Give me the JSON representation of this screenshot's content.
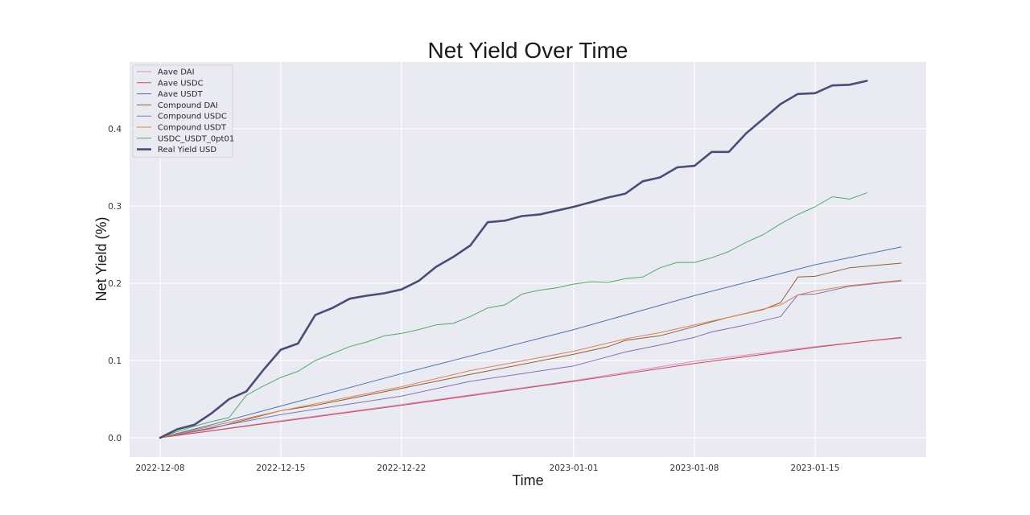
{
  "chart_data": {
    "type": "line",
    "title": "Net Yield Over Time",
    "xlabel": "Time",
    "ylabel": "Net Yield (%)",
    "x_type": "date",
    "xlim": [
      "2022-12-08",
      "2023-01-20"
    ],
    "ylim": [
      -0.02,
      0.48
    ],
    "x_ticks": [
      "2022-12-08",
      "2022-12-15",
      "2022-12-22",
      "2023-01-01",
      "2023-01-08",
      "2023-01-15"
    ],
    "y_ticks": [
      0.0,
      0.1,
      0.2,
      0.3,
      0.4
    ],
    "y_tick_labels": [
      "0.0",
      "0.1",
      "0.2",
      "0.3",
      "0.4"
    ],
    "grid": true,
    "legend_position": "top-left",
    "background": "#eaeaf2",
    "series": [
      {
        "name": "Aave DAI",
        "color": "#da8bc3",
        "linewidth": 1,
        "points": [
          [
            "2022-12-08",
            0
          ],
          [
            "2022-12-15",
            0.022
          ],
          [
            "2022-12-22",
            0.043
          ],
          [
            "2023-01-01",
            0.074
          ],
          [
            "2023-01-08",
            0.099
          ],
          [
            "2023-01-15",
            0.118
          ],
          [
            "2023-01-18",
            0.125
          ],
          [
            "2023-01-20",
            0.129
          ]
        ]
      },
      {
        "name": "Aave USDC",
        "color": "#c44e52",
        "linewidth": 1,
        "points": [
          [
            "2022-12-08",
            0
          ],
          [
            "2022-12-15",
            0.021
          ],
          [
            "2022-12-22",
            0.042
          ],
          [
            "2023-01-01",
            0.073
          ],
          [
            "2023-01-08",
            0.096
          ],
          [
            "2023-01-15",
            0.117
          ],
          [
            "2023-01-18",
            0.125
          ],
          [
            "2023-01-20",
            0.13
          ]
        ]
      },
      {
        "name": "Aave USDT",
        "color": "#4c72b0",
        "linewidth": 1,
        "points": [
          [
            "2022-12-08",
            0
          ],
          [
            "2022-12-11",
            0.017
          ],
          [
            "2022-12-15",
            0.041
          ],
          [
            "2022-12-22",
            0.083
          ],
          [
            "2023-01-01",
            0.14
          ],
          [
            "2023-01-08",
            0.184
          ],
          [
            "2023-01-15",
            0.224
          ],
          [
            "2023-01-20",
            0.247
          ]
        ]
      },
      {
        "name": "Compound DAI",
        "color": "#8c613c",
        "linewidth": 1,
        "points": [
          [
            "2022-12-08",
            0
          ],
          [
            "2022-12-11",
            0.012
          ],
          [
            "2022-12-15",
            0.035
          ],
          [
            "2022-12-17",
            0.042
          ],
          [
            "2022-12-22",
            0.064
          ],
          [
            "2022-12-26",
            0.082
          ],
          [
            "2023-01-01",
            0.108
          ],
          [
            "2023-01-03",
            0.118
          ],
          [
            "2023-01-04",
            0.126
          ],
          [
            "2023-01-06",
            0.132
          ],
          [
            "2023-01-08",
            0.144
          ],
          [
            "2023-01-10",
            0.156
          ],
          [
            "2023-01-12",
            0.166
          ],
          [
            "2023-01-13",
            0.175
          ],
          [
            "2023-01-14",
            0.208
          ],
          [
            "2023-01-15",
            0.209
          ],
          [
            "2023-01-17",
            0.22
          ],
          [
            "2023-01-20",
            0.226
          ]
        ]
      },
      {
        "name": "Compound USDC",
        "color": "#8172b3",
        "linewidth": 1,
        "points": [
          [
            "2022-12-08",
            0
          ],
          [
            "2022-12-11",
            0.013
          ],
          [
            "2022-12-15",
            0.03
          ],
          [
            "2022-12-22",
            0.054
          ],
          [
            "2022-12-26",
            0.073
          ],
          [
            "2023-01-01",
            0.093
          ],
          [
            "2023-01-04",
            0.111
          ],
          [
            "2023-01-06",
            0.12
          ],
          [
            "2023-01-08",
            0.13
          ],
          [
            "2023-01-09",
            0.137
          ],
          [
            "2023-01-11",
            0.146
          ],
          [
            "2023-01-13",
            0.157
          ],
          [
            "2023-01-14",
            0.185
          ],
          [
            "2023-01-15",
            0.186
          ],
          [
            "2023-01-17",
            0.196
          ],
          [
            "2023-01-20",
            0.203
          ]
        ]
      },
      {
        "name": "Compound USDT",
        "color": "#dd8452",
        "linewidth": 1,
        "points": [
          [
            "2022-12-08",
            0
          ],
          [
            "2022-12-11",
            0.015
          ],
          [
            "2022-12-15",
            0.035
          ],
          [
            "2022-12-22",
            0.066
          ],
          [
            "2022-12-26",
            0.087
          ],
          [
            "2023-01-01",
            0.112
          ],
          [
            "2023-01-04",
            0.128
          ],
          [
            "2023-01-06",
            0.136
          ],
          [
            "2023-01-08",
            0.146
          ],
          [
            "2023-01-10",
            0.156
          ],
          [
            "2023-01-13",
            0.172
          ],
          [
            "2023-01-14",
            0.185
          ],
          [
            "2023-01-15",
            0.19
          ],
          [
            "2023-01-17",
            0.197
          ],
          [
            "2023-01-20",
            0.204
          ]
        ]
      },
      {
        "name": "USDC_USDT_0pt01",
        "color": "#55a868",
        "linewidth": 1,
        "points": [
          [
            "2022-12-08",
            0
          ],
          [
            "2022-12-09",
            0.008
          ],
          [
            "2022-12-10",
            0.015
          ],
          [
            "2022-12-11",
            0.021
          ],
          [
            "2022-12-12",
            0.026
          ],
          [
            "2022-12-13",
            0.055
          ],
          [
            "2022-12-14",
            0.067
          ],
          [
            "2022-12-15",
            0.078
          ],
          [
            "2022-12-16",
            0.086
          ],
          [
            "2022-12-17",
            0.1
          ],
          [
            "2022-12-18",
            0.109
          ],
          [
            "2022-12-19",
            0.118
          ],
          [
            "2022-12-20",
            0.124
          ],
          [
            "2022-12-21",
            0.132
          ],
          [
            "2022-12-22",
            0.135
          ],
          [
            "2022-12-23",
            0.14
          ],
          [
            "2022-12-24",
            0.146
          ],
          [
            "2022-12-25",
            0.148
          ],
          [
            "2022-12-26",
            0.157
          ],
          [
            "2022-12-27",
            0.168
          ],
          [
            "2022-12-28",
            0.172
          ],
          [
            "2022-12-29",
            0.186
          ],
          [
            "2022-12-30",
            0.191
          ],
          [
            "2022-12-31",
            0.194
          ],
          [
            "2023-01-01",
            0.199
          ],
          [
            "2023-01-02",
            0.202
          ],
          [
            "2023-01-03",
            0.201
          ],
          [
            "2023-01-04",
            0.206
          ],
          [
            "2023-01-05",
            0.208
          ],
          [
            "2023-01-06",
            0.22
          ],
          [
            "2023-01-07",
            0.227
          ],
          [
            "2023-01-08",
            0.227
          ],
          [
            "2023-01-09",
            0.233
          ],
          [
            "2023-01-10",
            0.241
          ],
          [
            "2023-01-11",
            0.253
          ],
          [
            "2023-01-12",
            0.263
          ],
          [
            "2023-01-13",
            0.277
          ],
          [
            "2023-01-14",
            0.289
          ],
          [
            "2023-01-15",
            0.299
          ],
          [
            "2023-01-16",
            0.312
          ],
          [
            "2023-01-17",
            0.309
          ],
          [
            "2023-01-18",
            0.317
          ]
        ]
      },
      {
        "name": "Real Yield USD",
        "color": "#4c4c78",
        "linewidth": 2.6,
        "points": [
          [
            "2022-12-08",
            0
          ],
          [
            "2022-12-09",
            0.011
          ],
          [
            "2022-12-10",
            0.017
          ],
          [
            "2022-12-11",
            0.032
          ],
          [
            "2022-12-12",
            0.05
          ],
          [
            "2022-12-13",
            0.06
          ],
          [
            "2022-12-14",
            0.088
          ],
          [
            "2022-12-15",
            0.114
          ],
          [
            "2022-12-16",
            0.122
          ],
          [
            "2022-12-17",
            0.159
          ],
          [
            "2022-12-18",
            0.168
          ],
          [
            "2022-12-19",
            0.18
          ],
          [
            "2022-12-20",
            0.184
          ],
          [
            "2022-12-21",
            0.187
          ],
          [
            "2022-12-22",
            0.192
          ],
          [
            "2022-12-23",
            0.203
          ],
          [
            "2022-12-24",
            0.221
          ],
          [
            "2022-12-25",
            0.234
          ],
          [
            "2022-12-26",
            0.249
          ],
          [
            "2022-12-27",
            0.279
          ],
          [
            "2022-12-28",
            0.281
          ],
          [
            "2022-12-29",
            0.287
          ],
          [
            "2022-12-30",
            0.289
          ],
          [
            "2022-12-31",
            0.294
          ],
          [
            "2023-01-01",
            0.299
          ],
          [
            "2023-01-02",
            0.305
          ],
          [
            "2023-01-03",
            0.311
          ],
          [
            "2023-01-04",
            0.316
          ],
          [
            "2023-01-05",
            0.332
          ],
          [
            "2023-01-06",
            0.337
          ],
          [
            "2023-01-07",
            0.35
          ],
          [
            "2023-01-08",
            0.352
          ],
          [
            "2023-01-09",
            0.37
          ],
          [
            "2023-01-10",
            0.37
          ],
          [
            "2023-01-11",
            0.394
          ],
          [
            "2023-01-12",
            0.413
          ],
          [
            "2023-01-13",
            0.432
          ],
          [
            "2023-01-14",
            0.445
          ],
          [
            "2023-01-15",
            0.446
          ],
          [
            "2023-01-16",
            0.456
          ],
          [
            "2023-01-17",
            0.457
          ],
          [
            "2023-01-18",
            0.462
          ]
        ]
      }
    ]
  }
}
